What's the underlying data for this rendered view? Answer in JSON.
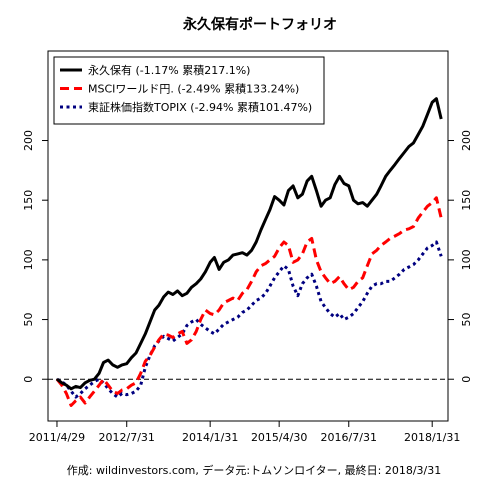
{
  "chart_data": {
    "type": "line",
    "title": "永久保有ポートフォリオ",
    "caption": "作成: wildinvestors.com, データ元:トムソンロイター, 最終日: 2018/3/31",
    "xlabel": "",
    "ylabel": "",
    "xlim": [
      "2011-03-01",
      "2018-05-15"
    ],
    "ylim": [
      -35,
      275
    ],
    "y_ticks": [
      0,
      50,
      100,
      150,
      200
    ],
    "y_tick_labels": [
      "0",
      "50",
      "100",
      "150",
      "200"
    ],
    "x_ticks": [
      "2011-04-29",
      "2012-07-31",
      "2014-01-31",
      "2015-04-30",
      "2016-07-31",
      "2018-01-31"
    ],
    "x_tick_labels": [
      "2011/4/29",
      "2012/7/31",
      "2014/1/31",
      "2015/4/30",
      "2016/7/31",
      "2018/1/31"
    ],
    "reference_line": 0,
    "grid": false,
    "legend_position": "top-left",
    "series": [
      {
        "name": "永久保有 (-1.17% 累積217.1%)",
        "color": "#000000",
        "style": "solid",
        "x": [
          "2011-04-29",
          "2011-05-31",
          "2011-06-30",
          "2011-07-31",
          "2011-08-31",
          "2011-09-30",
          "2011-10-31",
          "2011-11-30",
          "2011-12-31",
          "2012-01-31",
          "2012-02-29",
          "2012-03-31",
          "2012-04-30",
          "2012-05-31",
          "2012-06-30",
          "2012-07-31",
          "2012-08-31",
          "2012-09-30",
          "2012-10-31",
          "2012-11-30",
          "2012-12-31",
          "2013-01-31",
          "2013-02-28",
          "2013-03-31",
          "2013-04-30",
          "2013-05-31",
          "2013-06-30",
          "2013-07-31",
          "2013-08-31",
          "2013-09-30",
          "2013-10-31",
          "2013-11-30",
          "2013-12-31",
          "2014-01-31",
          "2014-02-28",
          "2014-03-31",
          "2014-04-30",
          "2014-05-31",
          "2014-06-30",
          "2014-07-31",
          "2014-08-31",
          "2014-09-30",
          "2014-10-31",
          "2014-11-30",
          "2014-12-31",
          "2015-01-31",
          "2015-02-28",
          "2015-03-31",
          "2015-04-30",
          "2015-05-31",
          "2015-06-30",
          "2015-07-31",
          "2015-08-31",
          "2015-09-30",
          "2015-10-31",
          "2015-11-30",
          "2015-12-31",
          "2016-01-31",
          "2016-02-29",
          "2016-03-31",
          "2016-04-30",
          "2016-05-31",
          "2016-06-30",
          "2016-07-31",
          "2016-08-31",
          "2016-09-30",
          "2016-10-31",
          "2016-11-30",
          "2016-12-31",
          "2017-01-31",
          "2017-02-28",
          "2017-03-31",
          "2017-04-30",
          "2017-05-31",
          "2017-06-30",
          "2017-07-31",
          "2017-08-31",
          "2017-09-30",
          "2017-10-31",
          "2017-11-30",
          "2017-12-31",
          "2018-01-31",
          "2018-02-28",
          "2018-03-31"
        ],
        "values": [
          0,
          -3,
          -5,
          -8,
          -6,
          -7,
          -3,
          -1,
          0,
          5,
          14,
          16,
          12,
          10,
          12,
          13,
          18,
          22,
          30,
          38,
          48,
          58,
          62,
          69,
          73,
          71,
          74,
          70,
          72,
          77,
          80,
          84,
          90,
          98,
          102,
          92,
          98,
          100,
          104,
          105,
          106,
          104,
          108,
          115,
          125,
          134,
          142,
          153,
          150,
          146,
          158,
          162,
          152,
          155,
          166,
          170,
          158,
          145,
          150,
          152,
          163,
          170,
          164,
          162,
          150,
          147,
          148,
          145,
          150,
          155,
          162,
          170,
          175,
          180,
          185,
          190,
          195,
          198,
          205,
          212,
          222,
          232,
          235,
          218
        ]
      },
      {
        "name": "MSCIワールド円. (-2.49% 累積133.24%)",
        "color": "#ff0000",
        "style": "dashed",
        "x": [
          "2011-04-29",
          "2011-05-31",
          "2011-06-30",
          "2011-07-31",
          "2011-08-31",
          "2011-09-30",
          "2011-10-31",
          "2011-11-30",
          "2011-12-31",
          "2012-01-31",
          "2012-02-29",
          "2012-03-31",
          "2012-04-30",
          "2012-05-31",
          "2012-06-30",
          "2012-07-31",
          "2012-08-31",
          "2012-09-30",
          "2012-10-31",
          "2012-11-30",
          "2012-12-31",
          "2013-01-31",
          "2013-02-28",
          "2013-03-31",
          "2013-04-30",
          "2013-05-31",
          "2013-06-30",
          "2013-07-31",
          "2013-08-31",
          "2013-09-30",
          "2013-10-31",
          "2013-11-30",
          "2013-12-31",
          "2014-01-31",
          "2014-02-28",
          "2014-03-31",
          "2014-04-30",
          "2014-05-31",
          "2014-06-30",
          "2014-07-31",
          "2014-08-31",
          "2014-09-30",
          "2014-10-31",
          "2014-11-30",
          "2014-12-31",
          "2015-01-31",
          "2015-02-28",
          "2015-03-31",
          "2015-04-30",
          "2015-05-31",
          "2015-06-30",
          "2015-07-31",
          "2015-08-31",
          "2015-09-30",
          "2015-10-31",
          "2015-11-30",
          "2015-12-31",
          "2016-01-31",
          "2016-02-29",
          "2016-03-31",
          "2016-04-30",
          "2016-05-31",
          "2016-06-30",
          "2016-07-31",
          "2016-08-31",
          "2016-09-30",
          "2016-10-31",
          "2016-11-30",
          "2016-12-31",
          "2017-01-31",
          "2017-02-28",
          "2017-03-31",
          "2017-04-30",
          "2017-05-31",
          "2017-06-30",
          "2017-07-31",
          "2017-08-31",
          "2017-09-30",
          "2017-10-31",
          "2017-11-30",
          "2017-12-31",
          "2018-01-31",
          "2018-02-28",
          "2018-03-31"
        ],
        "values": [
          0,
          -5,
          -12,
          -22,
          -18,
          -15,
          -20,
          -15,
          -10,
          -5,
          0,
          -5,
          -10,
          -12,
          -9,
          -8,
          -5,
          -3,
          5,
          15,
          20,
          27,
          33,
          38,
          37,
          35,
          38,
          40,
          30,
          33,
          40,
          50,
          58,
          55,
          54,
          58,
          64,
          66,
          68,
          66,
          72,
          75,
          82,
          90,
          95,
          97,
          100,
          103,
          110,
          115,
          112,
          98,
          100,
          105,
          115,
          118,
          100,
          90,
          85,
          80,
          82,
          86,
          80,
          75,
          77,
          82,
          85,
          95,
          105,
          108,
          112,
          115,
          118,
          120,
          122,
          125,
          126,
          128,
          135,
          140,
          145,
          148,
          152,
          135
        ]
      },
      {
        "name": "東証株価指数TOPIX (-2.94% 累積101.47%)",
        "color": "#000080",
        "style": "dotted",
        "x": [
          "2011-04-29",
          "2011-05-31",
          "2011-06-30",
          "2011-07-31",
          "2011-08-31",
          "2011-09-30",
          "2011-10-31",
          "2011-11-30",
          "2011-12-31",
          "2012-01-31",
          "2012-02-29",
          "2012-03-31",
          "2012-04-30",
          "2012-05-31",
          "2012-06-30",
          "2012-07-31",
          "2012-08-31",
          "2012-09-30",
          "2012-10-31",
          "2012-11-30",
          "2012-12-31",
          "2013-01-31",
          "2013-02-28",
          "2013-03-31",
          "2013-04-30",
          "2013-05-31",
          "2013-06-30",
          "2013-07-31",
          "2013-08-31",
          "2013-09-30",
          "2013-10-31",
          "2013-11-30",
          "2013-12-31",
          "2014-01-31",
          "2014-02-28",
          "2014-03-31",
          "2014-04-30",
          "2014-05-31",
          "2014-06-30",
          "2014-07-31",
          "2014-08-31",
          "2014-09-30",
          "2014-10-31",
          "2014-11-30",
          "2014-12-31",
          "2015-01-31",
          "2015-02-28",
          "2015-03-31",
          "2015-04-30",
          "2015-05-31",
          "2015-06-30",
          "2015-07-31",
          "2015-08-31",
          "2015-09-30",
          "2015-10-31",
          "2015-11-30",
          "2015-12-31",
          "2016-01-31",
          "2016-02-29",
          "2016-03-31",
          "2016-04-30",
          "2016-05-31",
          "2016-06-30",
          "2016-07-31",
          "2016-08-31",
          "2016-09-30",
          "2016-10-31",
          "2016-11-30",
          "2016-12-31",
          "2017-01-31",
          "2017-02-28",
          "2017-03-31",
          "2017-04-30",
          "2017-05-31",
          "2017-06-30",
          "2017-07-31",
          "2017-08-31",
          "2017-09-30",
          "2017-10-31",
          "2017-11-30",
          "2017-12-31",
          "2018-01-31",
          "2018-02-28",
          "2018-03-31"
        ],
        "values": [
          0,
          -2,
          -5,
          -10,
          -15,
          -12,
          -8,
          -5,
          -2,
          0,
          -3,
          -8,
          -12,
          -15,
          -12,
          -13,
          -12,
          -10,
          -5,
          10,
          20,
          28,
          32,
          36,
          34,
          32,
          35,
          38,
          45,
          48,
          50,
          46,
          43,
          40,
          38,
          42,
          46,
          48,
          50,
          52,
          56,
          58,
          62,
          66,
          68,
          72,
          78,
          85,
          90,
          95,
          92,
          78,
          70,
          80,
          85,
          88,
          78,
          65,
          60,
          55,
          52,
          55,
          50,
          52,
          55,
          60,
          65,
          72,
          78,
          80,
          80,
          82,
          82,
          85,
          88,
          92,
          94,
          96,
          100,
          105,
          110,
          112,
          115,
          103
        ]
      }
    ]
  }
}
